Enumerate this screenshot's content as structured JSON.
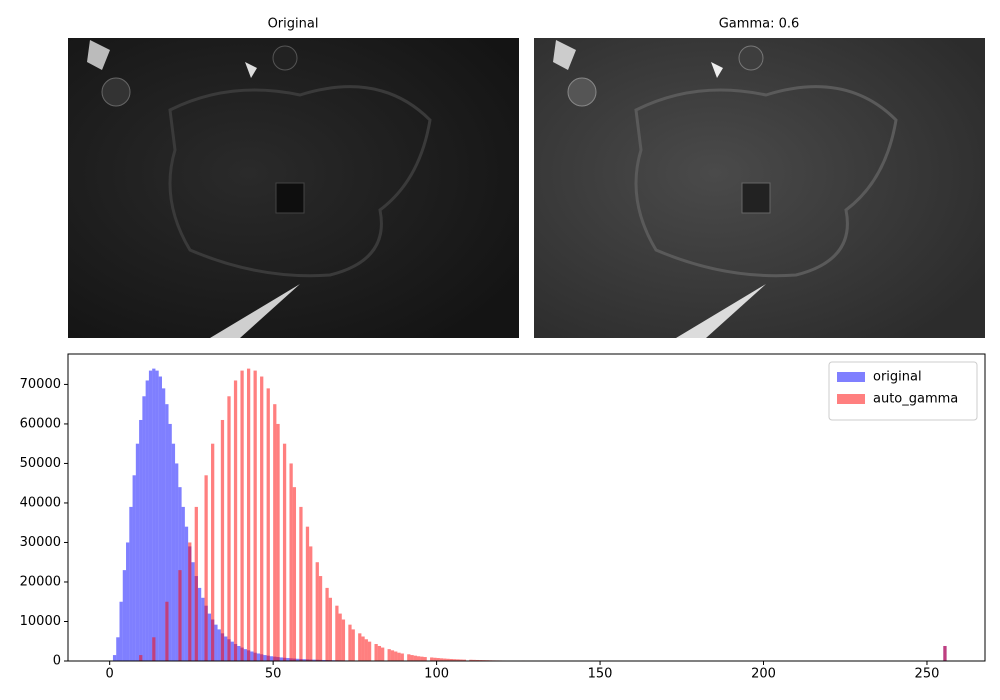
{
  "images": [
    {
      "title": "Original"
    },
    {
      "title": "Gamma: 0.6"
    }
  ],
  "chart_data": {
    "type": "histogram",
    "alpha": 0.5,
    "legend": "upper right",
    "bins": [
      0,
      1,
      2,
      3,
      4,
      5,
      6,
      7,
      8,
      9,
      10,
      11,
      12,
      13,
      14,
      15,
      16,
      17,
      18,
      19,
      20,
      21,
      22,
      23,
      24,
      25,
      26,
      27,
      28,
      29,
      30,
      31,
      32,
      33,
      34,
      35,
      36,
      37,
      38,
      39,
      40,
      41,
      42,
      43,
      44,
      45,
      46,
      47,
      48,
      49,
      50,
      51,
      52,
      53,
      54,
      55,
      56,
      57,
      58,
      59,
      60,
      61,
      62,
      63,
      64,
      65,
      66,
      67,
      68,
      69,
      70,
      71,
      72,
      73,
      74,
      75,
      76,
      77,
      78,
      79,
      80,
      81,
      82,
      83,
      84,
      85,
      86,
      87,
      88,
      89,
      90,
      91,
      92,
      93,
      94,
      95,
      96,
      97,
      98,
      99,
      100,
      101,
      102,
      103,
      104,
      105,
      106,
      107,
      108,
      109,
      110,
      111,
      112,
      113,
      114,
      115,
      116,
      117,
      118,
      119,
      120,
      121,
      122,
      123,
      124,
      125,
      126,
      127,
      128,
      129,
      130,
      131,
      132,
      133,
      134,
      135,
      136,
      137,
      138,
      139,
      140,
      141,
      142,
      143,
      144,
      145,
      146,
      147,
      148,
      149,
      150,
      151,
      152,
      153,
      154,
      155,
      156,
      157,
      158,
      159,
      160,
      161,
      162,
      163,
      164,
      165,
      166,
      167,
      168,
      169,
      170,
      171,
      172,
      173,
      174,
      175,
      176,
      177,
      178,
      179,
      180,
      181,
      182,
      183,
      184,
      185,
      186,
      187,
      188,
      189,
      190,
      191,
      192,
      193,
      194,
      195,
      196,
      197,
      198,
      199,
      200,
      201,
      202,
      203,
      204,
      205,
      206,
      207,
      208,
      209,
      210,
      211,
      212,
      213,
      214,
      215,
      216,
      217,
      218,
      219,
      220,
      221,
      222,
      223,
      224,
      225,
      226,
      227,
      228,
      229,
      230,
      231,
      232,
      233,
      234,
      235,
      236,
      237,
      238,
      239,
      240,
      241,
      242,
      243,
      244,
      245,
      246,
      247,
      248,
      249,
      250,
      251,
      252,
      253,
      254,
      255,
      256
    ],
    "series": [
      {
        "name": "original",
        "color": "#0000ff",
        "values": [
          0,
          1500,
          6000,
          15000,
          23000,
          30000,
          39000,
          47000,
          55000,
          61000,
          67000,
          71000,
          73500,
          74000,
          73500,
          72000,
          69000,
          65000,
          60000,
          55000,
          50000,
          44000,
          39000,
          34000,
          29000,
          25000,
          21500,
          18500,
          16000,
          14000,
          12000,
          10500,
          9200,
          8000,
          7000,
          6200,
          5500,
          4900,
          4300,
          3800,
          3400,
          3000,
          2700,
          2400,
          2100,
          1900,
          1700,
          1500,
          1350,
          1200,
          1100,
          1000,
          900,
          820,
          750,
          680,
          620,
          560,
          510,
          460,
          420,
          380,
          350,
          320,
          290,
          260,
          240,
          220,
          200,
          180,
          160,
          150,
          140,
          130,
          120,
          110,
          100,
          90,
          80,
          70,
          60,
          50,
          45,
          40,
          38,
          35,
          32,
          30,
          28,
          25,
          22,
          20,
          18,
          16,
          15,
          14,
          13,
          12,
          11,
          10,
          10,
          0,
          0,
          0,
          0,
          0,
          0,
          0,
          0,
          0,
          0,
          0,
          0,
          0,
          0,
          0,
          0,
          0,
          0,
          0,
          0,
          0,
          0,
          0,
          0,
          0,
          0,
          0,
          0,
          0,
          0,
          0,
          0,
          0,
          0,
          0,
          0,
          0,
          0,
          0,
          0,
          0,
          0,
          0,
          0,
          0,
          0,
          0,
          0,
          0,
          0,
          0,
          0,
          0,
          0,
          0,
          0,
          0,
          0,
          0,
          0,
          0,
          0,
          0,
          0,
          0,
          0,
          0,
          0,
          0,
          0,
          0,
          0,
          0,
          0,
          0,
          0,
          0,
          0,
          0,
          0,
          0,
          0,
          0,
          0,
          0,
          0,
          0,
          0,
          0,
          0,
          0,
          0,
          0,
          0,
          0,
          0,
          0,
          0,
          0,
          0,
          0,
          0,
          0,
          0,
          0,
          0,
          0,
          0,
          0,
          0,
          0,
          0,
          0,
          0,
          0,
          0,
          0,
          0,
          0,
          0,
          0,
          0,
          0,
          0,
          0,
          0,
          0,
          0,
          0,
          0,
          0,
          0,
          0,
          0,
          0,
          0,
          0,
          0,
          0,
          0,
          0,
          0,
          0,
          0,
          0,
          0,
          0,
          0,
          0,
          0,
          0,
          0,
          0,
          0,
          3800
        ]
      },
      {
        "name": "auto_gamma",
        "color": "#ff0000",
        "values": [
          0,
          0,
          0,
          0,
          0,
          0,
          0,
          0,
          0,
          1500,
          0,
          0,
          0,
          6000,
          0,
          0,
          0,
          15000,
          0,
          0,
          0,
          23000,
          0,
          0,
          30000,
          0,
          39000,
          0,
          0,
          47000,
          0,
          55000,
          0,
          0,
          61000,
          0,
          67000,
          0,
          71000,
          0,
          73500,
          0,
          74000,
          0,
          73500,
          0,
          72000,
          0,
          69000,
          0,
          65000,
          60000,
          0,
          55000,
          0,
          50000,
          44000,
          0,
          39000,
          0,
          34000,
          29000,
          0,
          25000,
          21500,
          0,
          18500,
          16000,
          0,
          14000,
          12000,
          10500,
          0,
          9200,
          8000,
          0,
          7000,
          6200,
          5500,
          4900,
          0,
          4300,
          3800,
          3400,
          0,
          3000,
          2700,
          2400,
          2100,
          1900,
          0,
          1700,
          1500,
          1350,
          1200,
          1100,
          1000,
          0,
          900,
          820,
          750,
          680,
          620,
          560,
          510,
          460,
          420,
          380,
          350,
          0,
          320,
          290,
          260,
          240,
          220,
          200,
          180,
          160,
          150,
          140,
          130,
          120,
          110,
          100,
          90,
          80,
          130,
          50,
          45,
          40,
          38,
          35,
          32,
          30,
          28,
          25,
          22,
          20,
          18,
          31,
          14,
          13,
          12,
          11,
          10,
          10,
          0,
          0,
          0,
          0,
          0,
          0,
          0,
          0,
          0,
          0,
          0,
          0,
          0,
          0,
          0,
          0,
          0,
          0,
          0,
          0,
          0,
          0,
          0,
          0,
          0,
          0,
          0,
          0,
          0,
          0,
          0,
          0,
          0,
          0,
          0,
          0,
          0,
          0,
          0,
          0,
          0,
          0,
          0,
          0,
          0,
          0,
          0,
          0,
          0,
          0,
          0,
          0,
          0,
          0,
          0,
          0,
          0,
          0,
          0,
          0,
          0,
          0,
          0,
          0,
          0,
          0,
          0,
          0,
          0,
          0,
          0,
          0,
          0,
          0,
          0,
          0,
          0,
          0,
          0,
          0,
          0,
          0,
          0,
          0,
          0,
          0,
          0,
          0,
          0,
          0,
          0,
          0,
          0,
          0,
          0,
          0,
          0,
          0,
          0,
          0,
          0,
          0,
          0,
          0,
          0,
          0,
          0,
          0,
          0,
          3800
        ]
      }
    ],
    "xlim": [
      -12.75,
      267.75
    ],
    "xticks": [
      0,
      50,
      100,
      150,
      200,
      250
    ],
    "ylim": [
      0,
      77700
    ],
    "yticks": [
      0,
      10000,
      20000,
      30000,
      40000,
      50000,
      60000,
      70000
    ]
  }
}
